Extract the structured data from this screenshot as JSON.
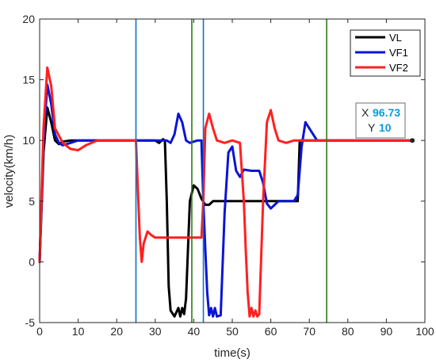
{
  "chart_data": {
    "type": "line",
    "xlabel": "time(s)",
    "ylabel": "velocity(km/h)",
    "xlim": [
      0,
      100
    ],
    "ylim": [
      -5,
      20
    ],
    "xticks": [
      0,
      10,
      20,
      30,
      40,
      50,
      60,
      70,
      80,
      90,
      100
    ],
    "yticks": [
      -5,
      0,
      5,
      10,
      15,
      20
    ],
    "grid": false,
    "legend_position": "top-right",
    "series": [
      {
        "name": "VL",
        "color": "#000000",
        "x": [
          0,
          1,
          2,
          3,
          4,
          5,
          6,
          8,
          10,
          15,
          20,
          25,
          30,
          31,
          32,
          32.5,
          33,
          33.5,
          34,
          35,
          36,
          36.5,
          37,
          37.5,
          38,
          38.5,
          39,
          40,
          41,
          42,
          43,
          44,
          45,
          50,
          55,
          60,
          65,
          67,
          67.5,
          70,
          75,
          80,
          90,
          97
        ],
        "y": [
          0,
          9,
          12.7,
          11.5,
          10,
          9.7,
          9.9,
          10,
          10,
          10,
          10,
          10,
          10,
          9.8,
          10.1,
          10,
          5,
          -2,
          -4,
          -4.5,
          -3.8,
          -4.5,
          -3.8,
          -4.3,
          -3,
          1,
          5,
          6.3,
          6,
          5.2,
          4.7,
          4.7,
          5,
          5,
          5,
          5,
          5,
          5,
          10,
          10,
          10,
          10,
          10,
          10
        ]
      },
      {
        "name": "VF1",
        "color": "#0b14d4",
        "x": [
          0,
          1,
          2,
          3,
          4,
          5,
          6,
          8,
          10,
          15,
          20,
          25,
          30,
          33,
          34,
          35,
          36,
          37,
          38,
          39,
          40,
          41,
          42,
          42.5,
          43,
          43.5,
          44,
          44.5,
          45,
          45.5,
          46,
          47,
          48,
          49,
          50,
          51,
          52,
          53,
          55,
          57,
          58,
          59,
          60,
          61,
          62,
          64,
          66,
          67,
          68,
          69,
          70,
          72,
          75,
          80,
          90,
          97
        ],
        "y": [
          0,
          10,
          14.6,
          13,
          10.5,
          9.8,
          9.6,
          9.8,
          10,
          10,
          10,
          10,
          10,
          10,
          9.8,
          10.5,
          12.2,
          11.5,
          10,
          9.8,
          9.9,
          10,
          10,
          5,
          1,
          -2.5,
          -4.4,
          -3.8,
          -4.5,
          -3.8,
          -4.5,
          -4.4,
          4,
          9,
          9.5,
          7.5,
          7,
          7.6,
          7.5,
          7.5,
          6.5,
          4.8,
          4.4,
          4.7,
          5,
          5,
          5,
          5.5,
          9.5,
          11.5,
          11,
          10,
          10,
          10,
          10,
          10
        ]
      },
      {
        "name": "VF2",
        "color": "#ff2020",
        "x": [
          0,
          1,
          2,
          3,
          4,
          6,
          8,
          10,
          12,
          15,
          20,
          25,
          25.5,
          26,
          26.5,
          27,
          28,
          29,
          30,
          32,
          35,
          38,
          40,
          42,
          42.5,
          43,
          44,
          45,
          46,
          48,
          50,
          52,
          53,
          53.5,
          54,
          54.5,
          55,
          55.5,
          56,
          56.5,
          57,
          58,
          59,
          60,
          61,
          62,
          64,
          66,
          70,
          75,
          80,
          90,
          97
        ],
        "y": [
          0,
          11,
          16,
          14.5,
          11,
          9.8,
          9.3,
          9.2,
          9.6,
          10,
          10,
          10,
          6,
          2,
          0,
          1.5,
          2.5,
          2.2,
          2,
          2,
          2,
          2,
          2,
          2,
          5,
          11,
          12.2,
          11,
          10,
          9.8,
          10,
          9.8,
          5,
          1,
          -2.5,
          -4.5,
          -3.8,
          -4.5,
          -4,
          -4.5,
          -4.3,
          5,
          11.5,
          12.5,
          11,
          10,
          9.8,
          10,
          10,
          10,
          10,
          10,
          10
        ]
      }
    ],
    "vertical_lines": [
      {
        "x": 25,
        "color": "#0a72c8"
      },
      {
        "x": 39.5,
        "color": "#2e7d14"
      },
      {
        "x": 42.5,
        "color": "#0a72c8"
      },
      {
        "x": 74.5,
        "color": "#2e7d14"
      }
    ],
    "datatip": {
      "x_label": "X",
      "x_value": "96.73",
      "y_label": "Y",
      "y_value": "10",
      "point": [
        96.73,
        10
      ]
    }
  }
}
